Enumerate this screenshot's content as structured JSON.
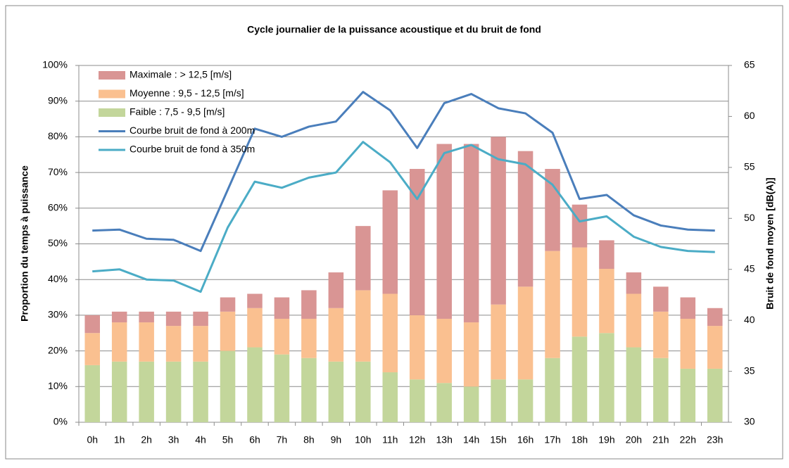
{
  "chart_data": {
    "type": "bar",
    "stacked": true,
    "title": "Cycle journalier de la puissance acoustique et du bruit de fond",
    "ylabel": "Proportion du temps à puissance",
    "y2label": "Bruit de fond moyen [dB(A)]",
    "categories": [
      "0h",
      "1h",
      "2h",
      "3h",
      "4h",
      "5h",
      "6h",
      "7h",
      "8h",
      "9h",
      "10h",
      "11h",
      "12h",
      "13h",
      "14h",
      "15h",
      "16h",
      "17h",
      "18h",
      "19h",
      "20h",
      "21h",
      "22h",
      "23h"
    ],
    "series": [
      {
        "name": "Maximale : > 12,5 [m/s]",
        "type": "bar",
        "color": "#d99594",
        "values": [
          5,
          3,
          3,
          4,
          4,
          4,
          4,
          6,
          8,
          10,
          18,
          29,
          41,
          49,
          50,
          47,
          38,
          23,
          12,
          8,
          6,
          7,
          6,
          5
        ]
      },
      {
        "name": "Moyenne : 9,5 - 12,5 [m/s]",
        "type": "bar",
        "color": "#fac090",
        "values": [
          9,
          11,
          11,
          10,
          10,
          11,
          11,
          10,
          11,
          15,
          20,
          22,
          18,
          18,
          18,
          21,
          26,
          30,
          25,
          18,
          15,
          13,
          14,
          12
        ]
      },
      {
        "name": "Faible : 7,5 - 9,5 [m/s]",
        "type": "bar",
        "color": "#c3d69b",
        "values": [
          16,
          17,
          17,
          17,
          17,
          20,
          21,
          19,
          18,
          17,
          17,
          14,
          12,
          11,
          10,
          12,
          12,
          18,
          24,
          25,
          21,
          18,
          15,
          15
        ]
      },
      {
        "name": "Courbe bruit de fond à 200m",
        "type": "line",
        "axis": "y2",
        "color": "#4a7ebb",
        "values": [
          48.8,
          48.9,
          48.0,
          47.9,
          46.8,
          52.8,
          58.8,
          58.0,
          59.0,
          59.5,
          62.4,
          60.6,
          56.9,
          61.3,
          62.2,
          60.8,
          60.3,
          58.4,
          51.9,
          52.3,
          50.3,
          49.3,
          48.9,
          48.8
        ]
      },
      {
        "name": "Courbe bruit de fond à 350m",
        "type": "line",
        "axis": "y2",
        "color": "#4bacc6",
        "values": [
          44.8,
          45.0,
          44.0,
          43.9,
          42.8,
          49.1,
          53.6,
          53.0,
          54.0,
          54.5,
          57.5,
          55.5,
          51.9,
          56.4,
          57.2,
          55.8,
          55.3,
          53.3,
          49.7,
          50.2,
          48.2,
          47.2,
          46.8,
          46.7
        ]
      }
    ],
    "ylim": [
      0,
      100
    ],
    "yticks": [
      {
        "value": 0,
        "label": "0%"
      },
      {
        "value": 10,
        "label": "10%"
      },
      {
        "value": 20,
        "label": "20%"
      },
      {
        "value": 30,
        "label": "30%"
      },
      {
        "value": 40,
        "label": "40%"
      },
      {
        "value": 50,
        "label": "50%"
      },
      {
        "value": 60,
        "label": "60%"
      },
      {
        "value": 70,
        "label": "70%"
      },
      {
        "value": 80,
        "label": "80%"
      },
      {
        "value": 90,
        "label": "90%"
      },
      {
        "value": 100,
        "label": "100%"
      }
    ],
    "y2lim": [
      30,
      65
    ],
    "y2ticks": [
      30,
      35,
      40,
      45,
      50,
      55,
      60,
      65
    ],
    "grid": true,
    "legend": "upper left"
  }
}
